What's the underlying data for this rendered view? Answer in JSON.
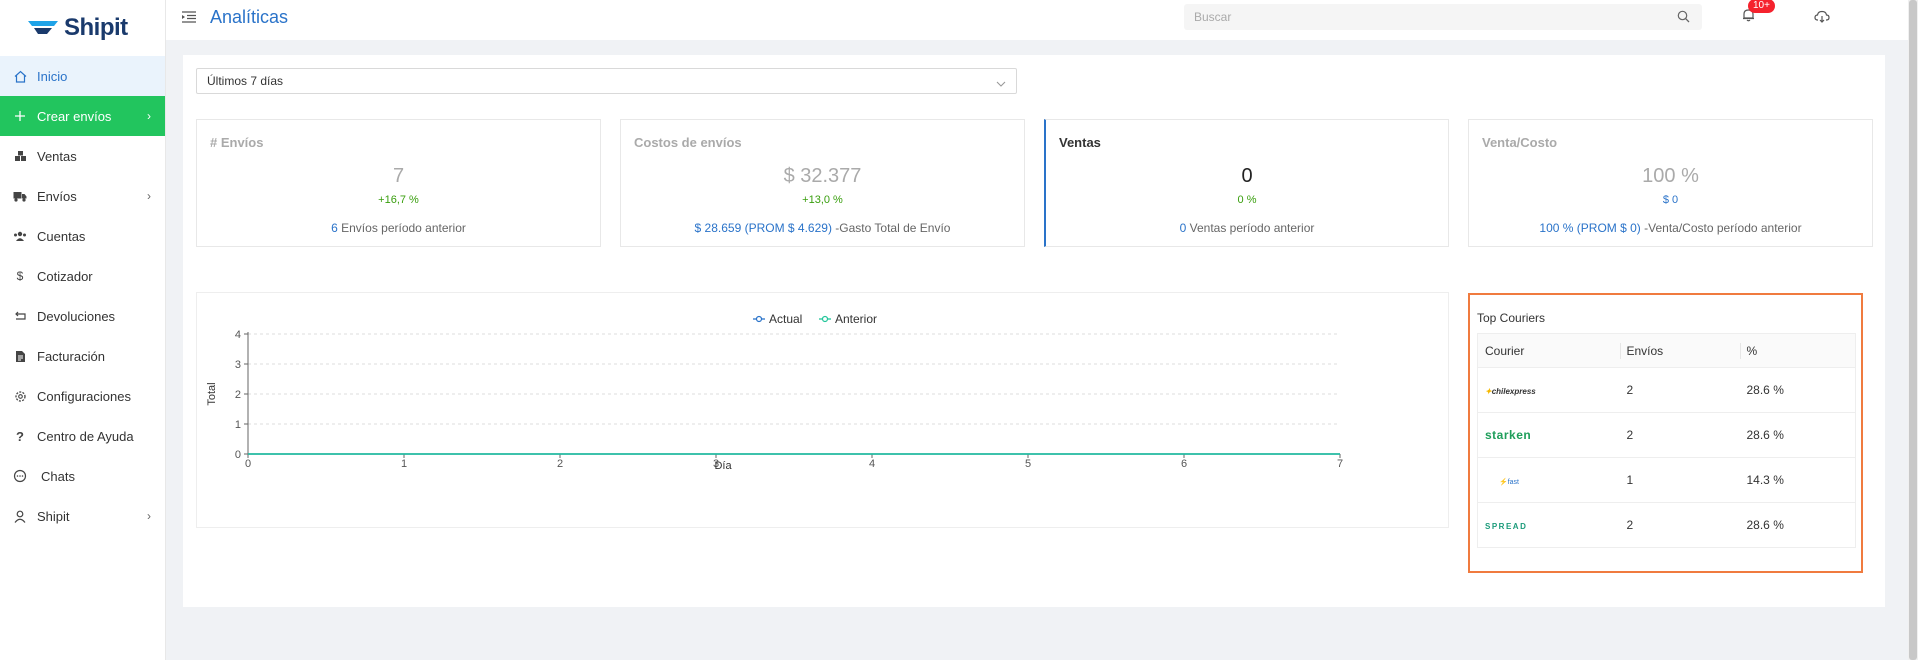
{
  "brand": {
    "name": "Shipit",
    "color": "#1a3a6c",
    "accent": "#2a73c9"
  },
  "sidebar": {
    "items": [
      {
        "label": "Inicio",
        "icon": "home-icon"
      },
      {
        "label": "Crear envíos",
        "icon": "plus-icon"
      },
      {
        "label": "Ventas",
        "icon": "boxes-icon"
      },
      {
        "label": "Envíos",
        "icon": "truck-icon"
      },
      {
        "label": "Cuentas",
        "icon": "users-icon"
      },
      {
        "label": "Cotizador",
        "icon": "dollar-icon"
      },
      {
        "label": "Devoluciones",
        "icon": "return-icon"
      },
      {
        "label": "Facturación",
        "icon": "invoice-icon"
      },
      {
        "label": "Configuraciones",
        "icon": "gear-icon"
      },
      {
        "label": "Centro de Ayuda",
        "icon": "question-icon"
      },
      {
        "label": "Chats",
        "icon": "chat-icon"
      },
      {
        "label": "Shipit",
        "icon": "user-icon"
      }
    ]
  },
  "header": {
    "title": "Analíticas",
    "search_placeholder": "Buscar",
    "notifications_badge": "10+"
  },
  "filters": {
    "period": "Últimos 7 días"
  },
  "kpis": {
    "envios": {
      "title": "# Envíos",
      "value": "7",
      "delta": "+16,7 %",
      "foot_hl": "6",
      "foot": " Envíos período anterior"
    },
    "costos": {
      "title": "Costos de envíos",
      "value": "$ 32.377",
      "delta": "+13,0 %",
      "foot_hl": "$ 28.659 (PROM $ 4.629)",
      "foot": " -Gasto Total de Envío"
    },
    "ventas": {
      "title": "Ventas",
      "value": "0",
      "delta": "0 %",
      "foot_hl": "0",
      "foot": " Ventas período anterior"
    },
    "venta_costo": {
      "title": "Venta/Costo",
      "value": "100 %",
      "delta": "$ 0",
      "foot_hl": "100 % (PROM $ 0)",
      "foot": " -Venta/Costo período anterior"
    }
  },
  "chart_data": {
    "type": "line",
    "x": [
      0,
      1,
      2,
      3,
      4,
      5,
      6,
      7
    ],
    "series": [
      {
        "name": "Actual",
        "values": [
          0,
          0,
          0,
          0,
          0,
          0,
          0,
          0
        ],
        "color": "#2a73c9"
      },
      {
        "name": "Anterior",
        "values": [
          0,
          0,
          0,
          0,
          0,
          0,
          0,
          0
        ],
        "color": "#22c59a"
      }
    ],
    "xlabel": "Día",
    "ylabel": "Total",
    "xlim": [
      0,
      7
    ],
    "ylim": [
      0,
      4
    ],
    "yticks": [
      0,
      1,
      2,
      3,
      4
    ],
    "grid": true,
    "legend": "top-center"
  },
  "couriers": {
    "title": "Top Couriers",
    "columns": [
      "Courier",
      "Envíos",
      "%"
    ],
    "rows": [
      {
        "courier": "chilexpress",
        "logo": "chilexpress-logo",
        "envios": "2",
        "pct": "28.6 %"
      },
      {
        "courier": "starken",
        "logo": "starken-logo",
        "envios": "2",
        "pct": "28.6 %"
      },
      {
        "courier": "fast",
        "logo": "fast-logo",
        "envios": "1",
        "pct": "14.3 %"
      },
      {
        "courier": "SPREAD",
        "logo": "spread-logo",
        "envios": "2",
        "pct": "28.6 %"
      }
    ]
  }
}
